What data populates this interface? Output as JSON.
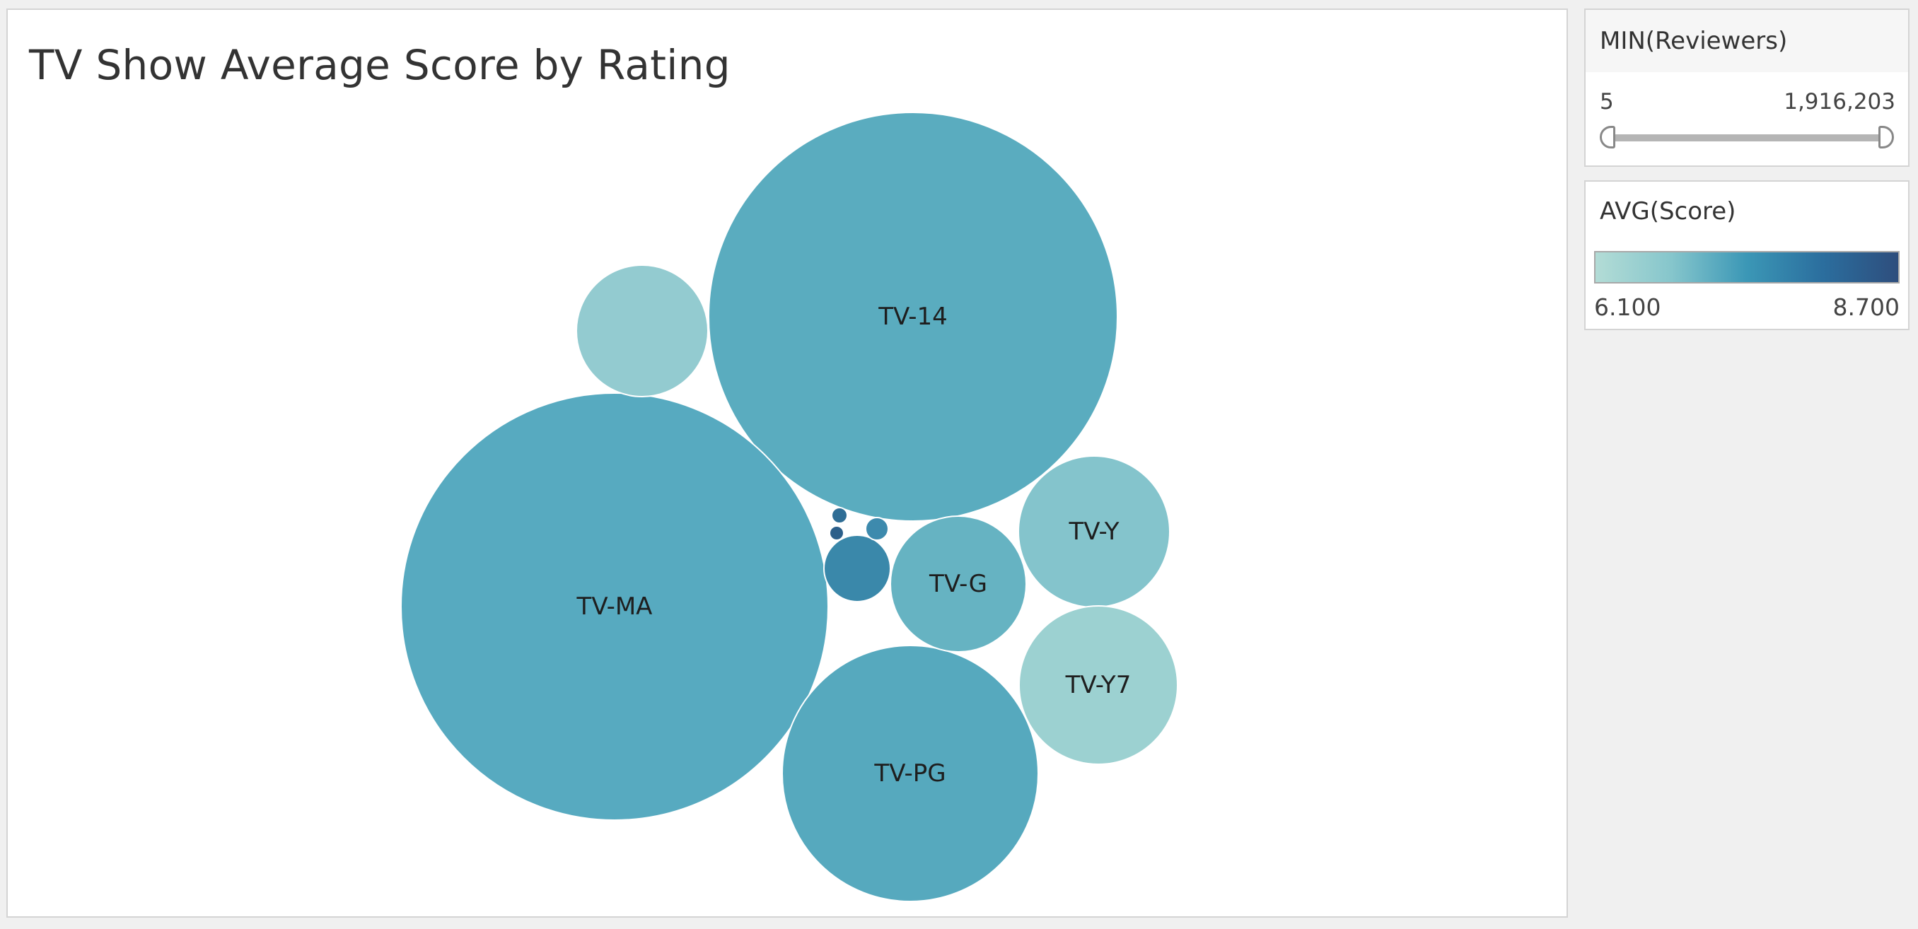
{
  "title": "TV Show Average Score by Rating",
  "filter": {
    "title": "MIN(Reviewers)",
    "min_label": "5",
    "max_label": "1,916,203"
  },
  "legend": {
    "title": "AVG(Score)",
    "min_label": "6.100",
    "max_label": "8.700",
    "min_value": 6.1,
    "max_value": 8.7,
    "gradient": [
      "#b3dcd6",
      "#86c6cc",
      "#3b97b6",
      "#2b6e9e",
      "#2e4e7d"
    ]
  },
  "chart_data": {
    "type": "bubble",
    "title": "TV Show Average Score by Rating",
    "color_measure": "AVG(Score)",
    "size_measure": "",
    "bubbles": [
      {
        "label": "TV-14",
        "color": "#5aacbf"
      },
      {
        "label": "TV-MA",
        "color": "#57aac0"
      },
      {
        "label": "TV-PG",
        "color": "#56a9be"
      },
      {
        "label": "TV-G",
        "color": "#66b3c2"
      },
      {
        "label": "TV-Y",
        "color": "#84c4cc"
      },
      {
        "label": "TV-Y7",
        "color": "#9cd1d1"
      },
      {
        "label": "",
        "color": "#93cbd0"
      },
      {
        "label": "",
        "color": "#3a88aa"
      },
      {
        "label": "",
        "color": "#3d8aad"
      },
      {
        "label": "",
        "color": "#2f6d95"
      },
      {
        "label": "",
        "color": "#2c5f8a"
      }
    ]
  }
}
